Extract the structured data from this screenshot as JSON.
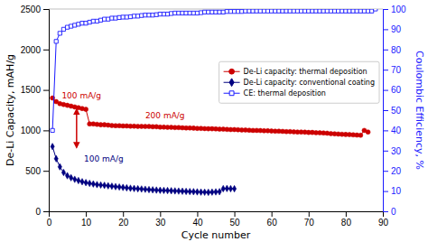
{
  "chart_data": {
    "type": "line",
    "x_label": "Cycle number",
    "y_label": "De-Li Capacity, mAH/g",
    "y2_label": "Coulombic Efficiency, %",
    "xlim": [
      0,
      90
    ],
    "xticks": [
      0,
      10,
      20,
      30,
      40,
      50,
      60,
      70,
      80,
      90
    ],
    "ylim": [
      0,
      2500
    ],
    "yticks": [
      0,
      500,
      1000,
      1500,
      2000,
      2500
    ],
    "y2lim": [
      0,
      100
    ],
    "y2ticks": [
      0,
      10,
      20,
      30,
      40,
      50,
      60,
      70,
      80,
      90,
      100
    ],
    "grid": false,
    "legend": "upper right",
    "series": [
      {
        "name": "De-Li capacity: thermal deposition",
        "color": "#cc0000",
        "marker": "circle",
        "x": [
          1,
          2,
          3,
          4,
          5,
          6,
          7,
          8,
          9,
          10,
          11,
          12,
          13,
          14,
          15,
          16,
          17,
          18,
          19,
          20,
          21,
          22,
          23,
          24,
          25,
          26,
          27,
          28,
          29,
          30,
          31,
          32,
          33,
          34,
          35,
          36,
          37,
          38,
          39,
          40,
          41,
          42,
          43,
          44,
          45,
          46,
          47,
          48,
          49,
          50,
          51,
          52,
          53,
          54,
          55,
          56,
          57,
          58,
          59,
          60,
          61,
          62,
          63,
          64,
          65,
          66,
          67,
          68,
          69,
          70,
          71,
          72,
          73,
          74,
          75,
          76,
          77,
          78,
          79,
          80,
          81,
          82,
          83,
          84,
          85,
          86
        ],
        "values": [
          1400,
          1355,
          1330,
          1320,
          1310,
          1300,
          1290,
          1280,
          1270,
          1260,
          1080,
          1080,
          1075,
          1070,
          1070,
          1065,
          1060,
          1058,
          1058,
          1055,
          1055,
          1052,
          1052,
          1050,
          1050,
          1048,
          1048,
          1045,
          1045,
          1040,
          1040,
          1038,
          1038,
          1035,
          1035,
          1032,
          1030,
          1030,
          1028,
          1025,
          1025,
          1022,
          1020,
          1020,
          1018,
          1015,
          1015,
          1012,
          1010,
          1010,
          1008,
          1005,
          1005,
          1002,
          1000,
          1000,
          998,
          995,
          995,
          992,
          990,
          990,
          988,
          985,
          985,
          982,
          980,
          980,
          978,
          975,
          975,
          972,
          970,
          968,
          965,
          960,
          958,
          955,
          952,
          950,
          948,
          945,
          942,
          940,
          1000,
          980
        ]
      },
      {
        "name": "De-Li capacity: conventional coating",
        "color": "#000080",
        "marker": "diamond",
        "x": [
          1,
          2,
          3,
          4,
          5,
          6,
          7,
          8,
          9,
          10,
          11,
          12,
          13,
          14,
          15,
          16,
          17,
          18,
          19,
          20,
          21,
          22,
          23,
          24,
          25,
          26,
          27,
          28,
          29,
          30,
          31,
          32,
          33,
          34,
          35,
          36,
          37,
          38,
          39,
          40,
          41,
          42,
          43,
          44,
          45,
          46,
          47,
          48,
          49,
          50
        ],
        "values": [
          800,
          650,
          550,
          480,
          440,
          415,
          395,
          380,
          365,
          355,
          345,
          338,
          330,
          325,
          320,
          315,
          310,
          305,
          300,
          295,
          290,
          285,
          282,
          278,
          275,
          272,
          268,
          265,
          262,
          260,
          258,
          256,
          254,
          252,
          250,
          248,
          246,
          244,
          242,
          240,
          238,
          236,
          235,
          238,
          240,
          242,
          280,
          282,
          280,
          278
        ]
      },
      {
        "name": "CE: thermal deposition",
        "color": "#1a1aff",
        "marker": "square-open",
        "axis": "y2",
        "x": [
          1,
          2,
          3,
          4,
          5,
          6,
          7,
          8,
          9,
          10,
          11,
          12,
          13,
          14,
          15,
          16,
          17,
          18,
          19,
          20,
          21,
          22,
          23,
          24,
          25,
          26,
          27,
          28,
          29,
          30,
          31,
          32,
          33,
          34,
          35,
          36,
          37,
          38,
          39,
          40,
          41,
          42,
          43,
          44,
          45,
          46,
          47,
          48,
          49,
          50,
          51,
          52,
          53,
          54,
          55,
          56,
          57,
          58,
          59,
          60,
          61,
          62,
          63,
          64,
          65,
          66,
          67,
          68,
          69,
          70,
          71,
          72,
          73,
          74,
          75,
          76,
          77,
          78,
          79,
          80,
          81,
          82,
          83,
          84,
          85,
          86,
          87,
          88
        ],
        "values": [
          40,
          84,
          88,
          90,
          91,
          91.5,
          92,
          92.5,
          93,
          93,
          93.5,
          94,
          94,
          94.5,
          95,
          95,
          95.5,
          95.5,
          95.8,
          96,
          96,
          96.2,
          96.5,
          96.5,
          96.8,
          97,
          97,
          97,
          97.2,
          97.5,
          97.5,
          97.5,
          97.8,
          98,
          98,
          98,
          98,
          98,
          98,
          98,
          98.2,
          98.5,
          98.5,
          98.5,
          98.5,
          98.5,
          98.5,
          98.8,
          98.8,
          98.8,
          98.8,
          98.8,
          99,
          99,
          99,
          99,
          99,
          99,
          99,
          99,
          99,
          99,
          99,
          99,
          99,
          99,
          99,
          99,
          99,
          99,
          99,
          99,
          99,
          99,
          99,
          99,
          99,
          99,
          99,
          99,
          99,
          99,
          99,
          99,
          99,
          99,
          99,
          100
        ]
      }
    ],
    "annotations": [
      {
        "text": "100 mA/g",
        "x": 3.5,
        "y": 1390,
        "color": "#cc0000"
      },
      {
        "text": "200 mA/g",
        "x": 26,
        "y": 1155,
        "color": "#cc0000"
      },
      {
        "text": "100 mA/g",
        "x": 9.5,
        "y": 610,
        "color": "#000080"
      }
    ],
    "arrows": [
      {
        "x": 7.5,
        "y_top": 1260,
        "y_bottom": 790,
        "color": "#cc0000"
      }
    ]
  }
}
